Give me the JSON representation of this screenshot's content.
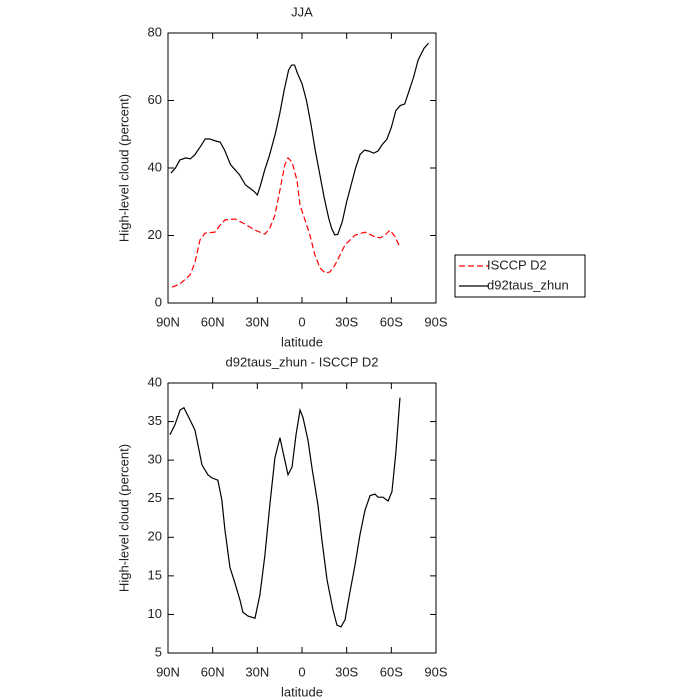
{
  "chart_data": [
    {
      "type": "line",
      "title": "JJA",
      "x_label": "latitude",
      "y_label": "High-level cloud (percent)",
      "xlim": [
        90,
        -90
      ],
      "xticks": [
        {
          "value": 90,
          "label": "90N"
        },
        {
          "value": 60,
          "label": "60N"
        },
        {
          "value": 30,
          "label": "30N"
        },
        0,
        {
          "value": -30,
          "label": "30S"
        },
        {
          "value": -60,
          "label": "60S"
        },
        {
          "value": -90,
          "label": "90S"
        }
      ],
      "ylim": [
        0,
        80
      ],
      "yticks": [
        0,
        20,
        40,
        60,
        80
      ],
      "legend": "right",
      "series": [
        {
          "name": "ISCCP D2",
          "color": "#ff0000",
          "dash": true,
          "x": [
            87.3,
            82,
            75.2,
            71.9,
            68.5,
            65.2,
            58.5,
            55.1,
            51.8,
            45.1,
            38.4,
            31.6,
            24.9,
            21.6,
            18.2,
            14.8,
            11.5,
            9.4,
            6.7,
            3.4,
            1.3,
            -2,
            -5.4,
            -8.7,
            -12.1,
            -15.5,
            -18.8,
            -22.2,
            -25.5,
            -28.9,
            -35.6,
            -42.3,
            -49.1,
            -52.4,
            -55.7,
            -59.1,
            -62.5,
            -65.8
          ],
          "values": [
            4.7,
            5.6,
            8.3,
            12,
            18.7,
            20.7,
            21,
            23,
            24.6,
            24.9,
            23.4,
            21.6,
            20.4,
            22.2,
            26,
            33.5,
            41,
            43,
            41.8,
            36.4,
            29,
            24.6,
            20,
            14.2,
            10.4,
            8.9,
            9.2,
            11.3,
            14.2,
            17.2,
            20.1,
            21,
            19.6,
            19.3,
            20.1,
            21.6,
            19.6,
            16.6
          ]
        },
        {
          "name": "d92taus_zhun",
          "color": "#000000",
          "dash": false,
          "x": [
            88,
            85,
            82,
            78,
            75,
            72,
            68,
            65,
            62,
            58,
            55,
            52,
            48,
            45,
            42,
            38,
            35,
            32,
            30,
            28,
            25,
            22,
            18,
            15,
            12,
            9,
            7,
            5,
            3,
            0,
            -3,
            -6,
            -9,
            -12,
            -15,
            -18,
            -20,
            -22,
            -24,
            -27,
            -30,
            -33,
            -36,
            -39,
            -42,
            -45,
            -48,
            -51,
            -54,
            -57,
            -60,
            -63,
            -66,
            -69,
            -72,
            -75,
            -78,
            -82,
            -85
          ],
          "values": [
            38.5,
            40,
            42.4,
            43,
            42.7,
            43.9,
            46.5,
            48.6,
            48.6,
            48,
            47.7,
            45.3,
            41,
            39.5,
            38,
            35,
            34,
            33,
            32,
            34.7,
            39.5,
            43.5,
            50,
            56,
            63,
            69,
            70.5,
            70.5,
            68,
            65,
            60,
            53,
            45,
            38,
            31,
            25,
            22,
            20.2,
            20.3,
            24,
            30,
            35,
            40,
            44,
            45.3,
            45,
            44.4,
            45,
            47,
            48.5,
            52,
            57,
            58.5,
            59,
            63,
            67,
            72,
            75.5,
            77
          ]
        }
      ]
    },
    {
      "type": "line",
      "title": "d92taus_zhun - ISCCP D2",
      "x_label": "latitude",
      "y_label": "High-level cloud (percent)",
      "xlim": [
        90,
        -90
      ],
      "xticks": [
        {
          "value": 90,
          "label": "90N"
        },
        {
          "value": 60,
          "label": "60N"
        },
        {
          "value": 30,
          "label": "30N"
        },
        0,
        {
          "value": -30,
          "label": "30S"
        },
        {
          "value": -60,
          "label": "60S"
        },
        {
          "value": -90,
          "label": "90S"
        }
      ],
      "ylim": [
        5,
        40
      ],
      "yticks": [
        5,
        10,
        15,
        20,
        25,
        30,
        35,
        40
      ],
      "series": [
        {
          "name": "d92taus_zhun - ISCCP D2",
          "color": "#000000",
          "dash": false,
          "x": [
            88.7,
            85.3,
            81.9,
            79.3,
            75.2,
            71.9,
            69.9,
            67.2,
            63.2,
            60.5,
            56.5,
            53.8,
            51.8,
            48.4,
            45.1,
            41.7,
            39.7,
            36.4,
            31.6,
            28.3,
            24.9,
            21.6,
            18.2,
            14.8,
            12.8,
            9.4,
            6.7,
            4,
            1.3,
            -0.7,
            -4,
            -6.7,
            -10.7,
            -13.4,
            -16.8,
            -20.8,
            -23.5,
            -26.2,
            -28.9,
            -32.2,
            -35.6,
            -38.9,
            -42.3,
            -45.7,
            -49,
            -51,
            -54.4,
            -57.8,
            -60.4,
            -63.1,
            -65.8
          ],
          "values": [
            33.3,
            34.6,
            36.5,
            36.8,
            35.2,
            33.9,
            32,
            29.4,
            28.1,
            27.7,
            27.4,
            24.8,
            21,
            16.1,
            14.1,
            11.9,
            10.3,
            9.8,
            9.5,
            12.5,
            17.7,
            24.2,
            30.3,
            32.9,
            31.1,
            28.1,
            29.1,
            33.3,
            36.5,
            35.5,
            32.6,
            29,
            24.2,
            19.6,
            14.5,
            10.6,
            8.6,
            8.4,
            9.3,
            12.9,
            16.4,
            20.3,
            23.5,
            25.4,
            25.6,
            25.2,
            25.2,
            24.7,
            25.9,
            31.1,
            38.1
          ]
        }
      ]
    }
  ]
}
